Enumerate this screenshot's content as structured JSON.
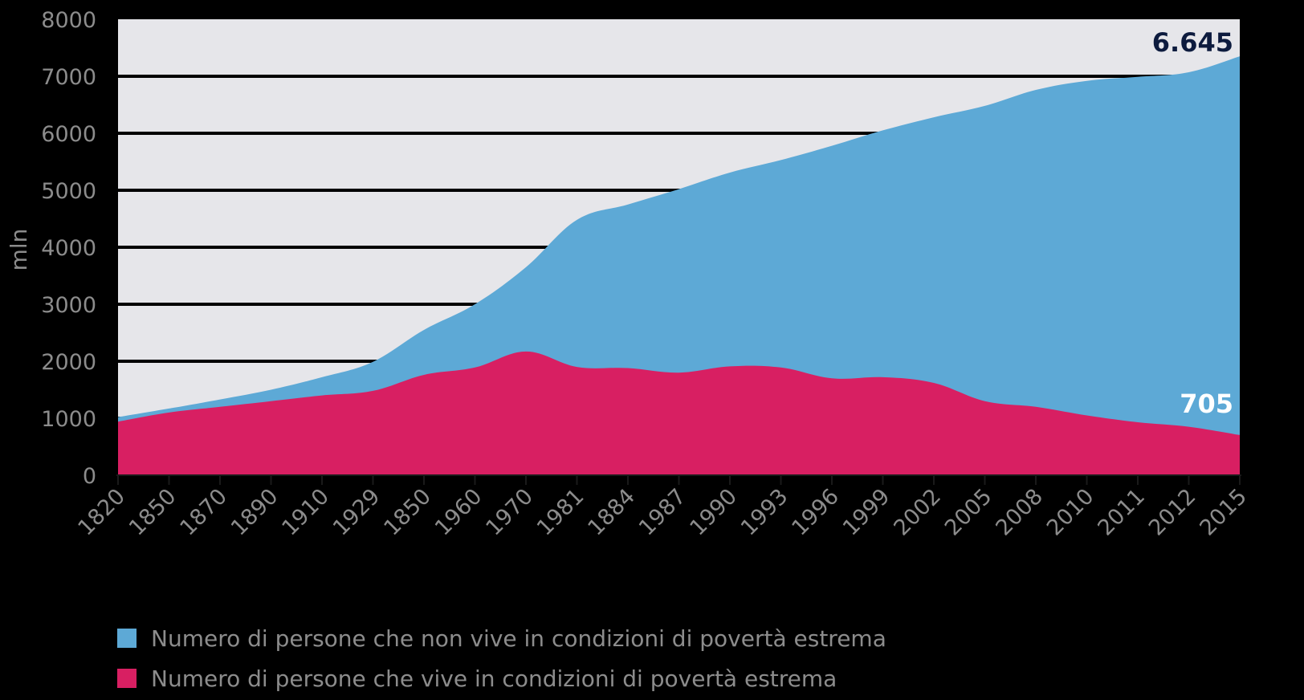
{
  "chart_data": {
    "type": "area",
    "ylabel": "mln",
    "ylim": [
      0,
      8000
    ],
    "yticks": [
      "0",
      "1000",
      "2000",
      "3000",
      "4000",
      "5000",
      "6000",
      "7000",
      "8000"
    ],
    "categories": [
      "1820",
      "1850",
      "1870",
      "1890",
      "1910",
      "1929",
      "1850",
      "1960",
      "1970",
      "1981",
      "1884",
      "1987",
      "1990",
      "1993",
      "1996",
      "1999",
      "2002",
      "2005",
      "2008",
      "2010",
      "2011",
      "2012",
      "2015"
    ],
    "stacked": true,
    "series": [
      {
        "name": "Numero di persone che vive in condizioni di povertà estrema",
        "color": "#d81f62",
        "values": [
          940,
          1100,
          1200,
          1300,
          1400,
          1480,
          1760,
          1890,
          2170,
          1900,
          1880,
          1800,
          1910,
          1890,
          1700,
          1720,
          1620,
          1300,
          1200,
          1050,
          930,
          850,
          705
        ]
      },
      {
        "name": "Numero di persone che non vive in condizioni di povertà estrema",
        "color": "#5da9d6",
        "values": [
          80,
          70,
          130,
          200,
          320,
          510,
          790,
          1110,
          1480,
          2580,
          2870,
          3220,
          3400,
          3640,
          4080,
          4330,
          4660,
          5180,
          5560,
          5870,
          6060,
          6220,
          6645
        ]
      }
    ],
    "annotations": [
      {
        "text": "6.645",
        "series": "Numero di persone che non vive in condizioni di povertà estrema",
        "category": "2015",
        "color": "#0d1b3e"
      },
      {
        "text": "705",
        "series": "Numero di persone che vive in condizioni di povertà estrema",
        "category": "2015",
        "color": "#ffffff"
      }
    ],
    "plot_background": "#e6e6ea",
    "grid": true,
    "grid_color": "#000000",
    "legend_position": "bottom-left"
  }
}
